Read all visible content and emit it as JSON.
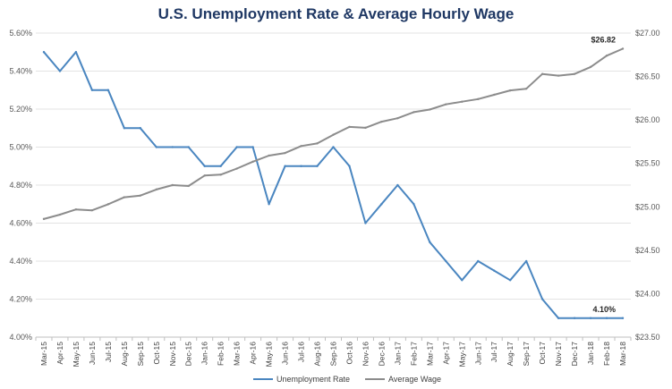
{
  "chart_data": {
    "type": "line",
    "title": "U.S. Unemployment Rate & Average Hourly Wage",
    "categories": [
      "Mar-15",
      "Apr-15",
      "May-15",
      "Jun-15",
      "Jul-15",
      "Aug-15",
      "Sep-15",
      "Oct-15",
      "Nov-15",
      "Dec-15",
      "Jan-16",
      "Feb-16",
      "Mar-16",
      "Apr-16",
      "May-16",
      "Jun-16",
      "Jul-16",
      "Aug-16",
      "Sep-16",
      "Oct-16",
      "Nov-16",
      "Dec-16",
      "Jan-17",
      "Feb-17",
      "Mar-17",
      "Apr-17",
      "May-17",
      "Jun-17",
      "Jul-17",
      "Aug-17",
      "Sep-17",
      "Oct-17",
      "Nov-17",
      "Dec-17",
      "Jan-18",
      "Feb-18",
      "Mar-18"
    ],
    "series": [
      {
        "name": "Unemployment Rate",
        "axis": "left",
        "color": "#4a86c0",
        "values": [
          5.5,
          5.4,
          5.5,
          5.3,
          5.3,
          5.1,
          5.1,
          5.0,
          5.0,
          5.0,
          4.9,
          4.9,
          5.0,
          5.0,
          4.7,
          4.9,
          4.9,
          4.9,
          5.0,
          4.9,
          4.6,
          4.7,
          4.8,
          4.7,
          4.5,
          4.4,
          4.3,
          4.4,
          4.35,
          4.3,
          4.4,
          4.2,
          4.1,
          4.1,
          4.1,
          4.1,
          4.1
        ],
        "end_label": "4.10%"
      },
      {
        "name": "Average Wage",
        "axis": "right",
        "color": "#8c8c8c",
        "values": [
          24.86,
          24.91,
          24.97,
          24.96,
          25.03,
          25.11,
          25.13,
          25.2,
          25.25,
          25.24,
          25.36,
          25.37,
          25.44,
          25.52,
          25.59,
          25.62,
          25.7,
          25.73,
          25.83,
          25.92,
          25.91,
          25.98,
          26.02,
          26.09,
          26.12,
          26.18,
          26.21,
          26.24,
          26.29,
          26.34,
          26.36,
          26.53,
          26.51,
          26.53,
          26.61,
          26.74,
          26.82
        ],
        "end_label": "$26.82"
      }
    ],
    "y_left": {
      "ylim": [
        4.0,
        5.6
      ],
      "ticks": [
        "4.00%",
        "4.20%",
        "4.40%",
        "4.60%",
        "4.80%",
        "5.00%",
        "5.20%",
        "5.40%",
        "5.60%"
      ]
    },
    "y_right": {
      "ylim": [
        23.5,
        27.0
      ],
      "ticks": [
        "$23.50",
        "$24.00",
        "$24.50",
        "$25.00",
        "$25.50",
        "$26.00",
        "$26.50",
        "$27.00"
      ]
    },
    "grid": true,
    "legend_position": "bottom"
  }
}
